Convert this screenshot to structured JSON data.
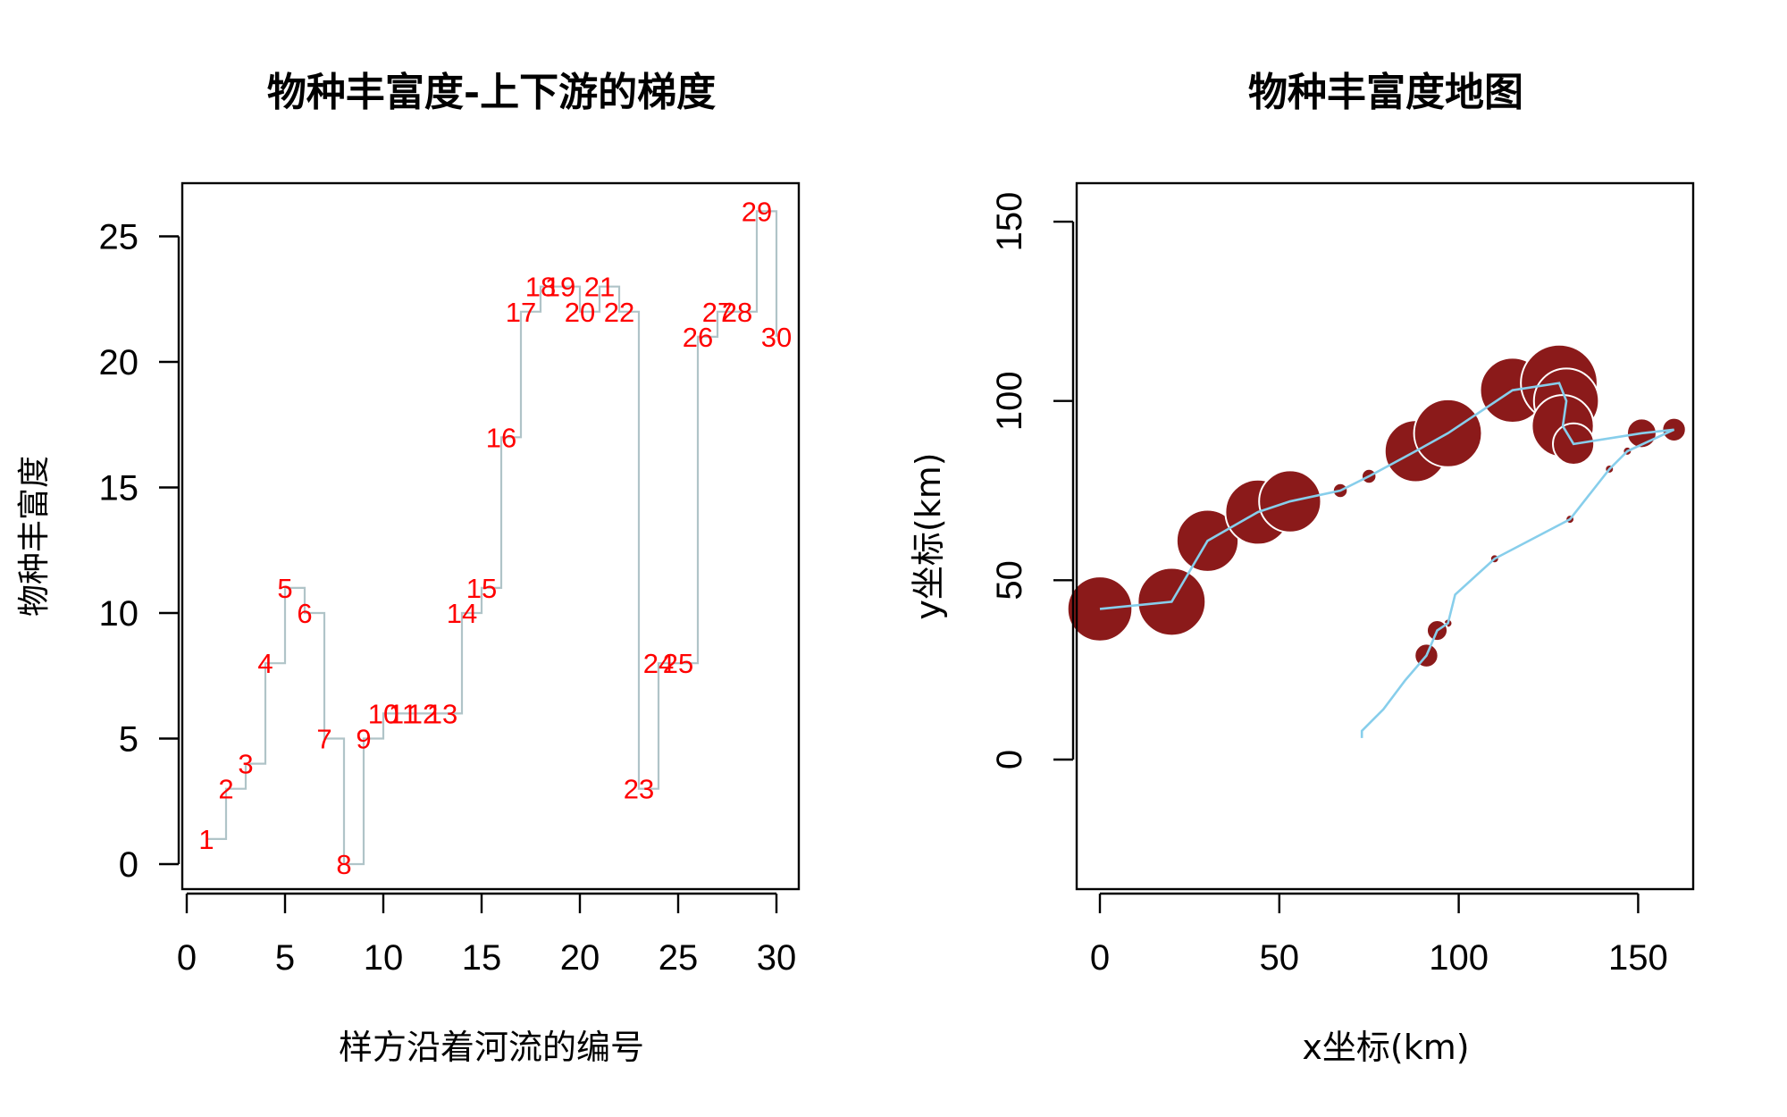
{
  "chart_data": [
    {
      "type": "line",
      "title": "物种丰富度-上下游的梯度",
      "xlabel": "样方沿着河流的编号",
      "ylabel": "物种丰富度",
      "xlim": [
        0,
        30
      ],
      "ylim": [
        0,
        26
      ],
      "xticks": [
        "0",
        "5",
        "10",
        "15",
        "20",
        "25",
        "30"
      ],
      "yticks": [
        "0",
        "5",
        "10",
        "15",
        "20",
        "25"
      ],
      "grid": false,
      "line_color": "#b0c4c8",
      "label_color": "#ff0000",
      "x": [
        1,
        2,
        3,
        4,
        5,
        6,
        7,
        8,
        9,
        10,
        11,
        12,
        13,
        14,
        15,
        16,
        17,
        18,
        19,
        20,
        21,
        22,
        23,
        24,
        25,
        26,
        27,
        28,
        29,
        30
      ],
      "y": [
        1,
        3,
        4,
        8,
        11,
        10,
        5,
        0,
        5,
        6,
        6,
        6,
        6,
        10,
        11,
        17,
        22,
        23,
        23,
        22,
        23,
        22,
        3,
        8,
        8,
        21,
        22,
        22,
        26,
        21
      ],
      "point_labels": [
        "1",
        "2",
        "3",
        "4",
        "5",
        "6",
        "7",
        "8",
        "9",
        "10",
        "11",
        "12",
        "13",
        "14",
        "15",
        "16",
        "17",
        "18",
        "19",
        "20",
        "21",
        "22",
        "23",
        "24",
        "25",
        "26",
        "27",
        "28",
        "29",
        "30"
      ]
    },
    {
      "type": "scatter",
      "title": "物种丰富度地图",
      "xlabel": "x坐标(km)",
      "ylabel": "y坐标(km)",
      "xlim": [
        -6,
        166
      ],
      "ylim": [
        -36,
        162
      ],
      "xticks": [
        "0",
        "50",
        "100",
        "150"
      ],
      "yticks": [
        "0",
        "50",
        "100",
        "150"
      ],
      "grid": false,
      "path_color": "#87ceeb",
      "bubble_color": "#8b1a1a",
      "bubble_size_variable": "物种丰富度",
      "x": [
        0,
        20,
        30,
        44,
        53,
        67,
        75,
        88,
        97,
        115,
        128,
        130,
        129,
        132,
        151,
        160,
        147,
        142,
        131,
        110,
        99,
        97,
        94,
        91,
        85,
        82,
        79,
        76,
        73,
        73
      ],
      "y": [
        42,
        44,
        61,
        69,
        72,
        75,
        79,
        86,
        91,
        103,
        105,
        100,
        93,
        88,
        91,
        92,
        86,
        81,
        67,
        56,
        46,
        38,
        36,
        29,
        22,
        18,
        14,
        11,
        8,
        6
      ],
      "sizes": [
        22,
        23,
        21,
        22,
        21,
        5,
        5,
        21,
        23,
        22,
        26,
        22,
        21,
        14,
        10,
        8,
        3,
        3,
        3,
        3,
        1,
        3,
        7,
        8,
        1,
        0,
        0,
        0,
        0,
        0
      ]
    }
  ]
}
